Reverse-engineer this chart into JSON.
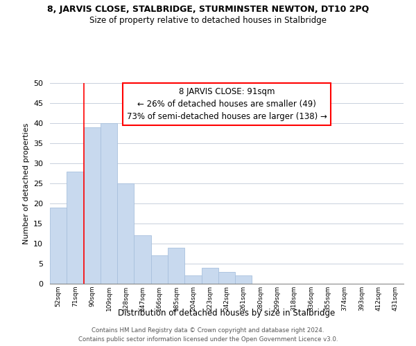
{
  "title": "8, JARVIS CLOSE, STALBRIDGE, STURMINSTER NEWTON, DT10 2PQ",
  "subtitle": "Size of property relative to detached houses in Stalbridge",
  "xlabel": "Distribution of detached houses by size in Stalbridge",
  "ylabel": "Number of detached properties",
  "bar_color": "#c8d9ee",
  "bar_edge_color": "#a8c0dd",
  "bin_labels": [
    "52sqm",
    "71sqm",
    "90sqm",
    "109sqm",
    "128sqm",
    "147sqm",
    "166sqm",
    "185sqm",
    "204sqm",
    "223sqm",
    "242sqm",
    "261sqm",
    "280sqm",
    "299sqm",
    "318sqm",
    "336sqm",
    "355sqm",
    "374sqm",
    "393sqm",
    "412sqm",
    "431sqm"
  ],
  "bar_values": [
    19,
    28,
    39,
    40,
    25,
    12,
    7,
    9,
    2,
    4,
    3,
    2,
    0,
    0,
    0,
    0,
    0,
    0,
    0,
    0,
    0
  ],
  "ylim": [
    0,
    50
  ],
  "yticks": [
    0,
    5,
    10,
    15,
    20,
    25,
    30,
    35,
    40,
    45,
    50
  ],
  "marker_label": "8 JARVIS CLOSE: 91sqm",
  "annotation_line1": "← 26% of detached houses are smaller (49)",
  "annotation_line2": "73% of semi-detached houses are larger (138) →",
  "footer_line1": "Contains HM Land Registry data © Crown copyright and database right 2024.",
  "footer_line2": "Contains public sector information licensed under the Open Government Licence v3.0.",
  "background_color": "#ffffff",
  "grid_color": "#c8d0dc"
}
